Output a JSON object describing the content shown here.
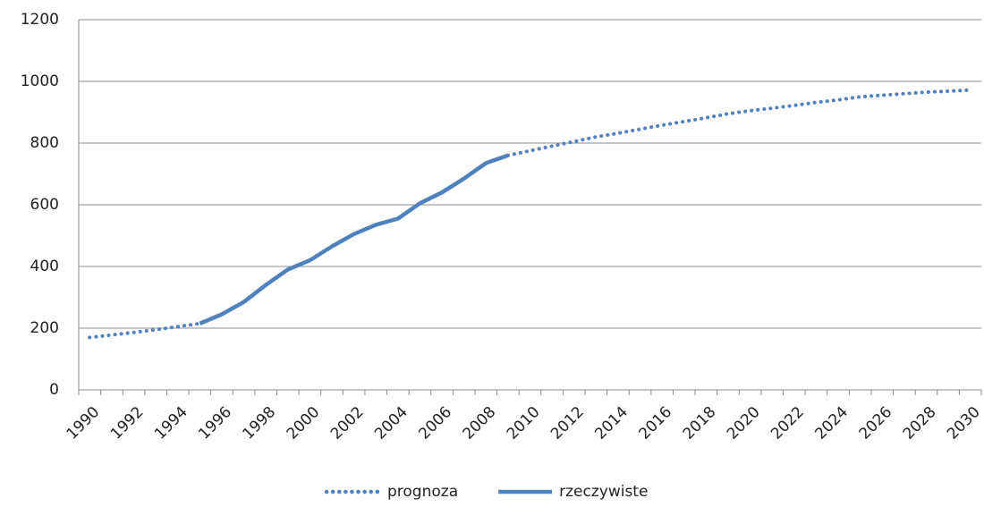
{
  "chart_data": {
    "type": "line",
    "categories": [
      "1990",
      null,
      "1992",
      null,
      "1994",
      null,
      "1996",
      null,
      "1998",
      null,
      "2000",
      null,
      "2002",
      null,
      "2004",
      null,
      "2006",
      null,
      "2008",
      null,
      "2010",
      null,
      "2012",
      null,
      "2014",
      null,
      "2016",
      null,
      "2018",
      null,
      "2020",
      null,
      "2022",
      null,
      "2024",
      null,
      "2026",
      null,
      "2028",
      null,
      "2030"
    ],
    "series": [
      {
        "name": "prognoza",
        "color": "#4f81bd",
        "style": "dotted",
        "values": [
          170,
          178,
          186,
          195,
          205,
          215,
          null,
          null,
          null,
          null,
          null,
          null,
          null,
          null,
          null,
          null,
          null,
          null,
          null,
          760,
          775,
          790,
          805,
          820,
          832,
          845,
          858,
          870,
          882,
          895,
          905,
          913,
          922,
          932,
          940,
          950,
          955,
          960,
          965,
          968,
          972
        ]
      },
      {
        "name": "rzeczywiste",
        "color": "#4f81bd",
        "style": "solid",
        "values": [
          null,
          null,
          null,
          null,
          null,
          215,
          245,
          285,
          340,
          390,
          420,
          465,
          505,
          535,
          555,
          605,
          640,
          685,
          735,
          760,
          null,
          null,
          null,
          null,
          null,
          null,
          null,
          null,
          null,
          null,
          null,
          null,
          null,
          null,
          null,
          null,
          null,
          null,
          null,
          null,
          null
        ]
      }
    ],
    "ylim": [
      0,
      1200
    ],
    "yticks": [
      0,
      200,
      400,
      600,
      800,
      1000,
      1200
    ],
    "grid": true,
    "legend": "bottom"
  }
}
